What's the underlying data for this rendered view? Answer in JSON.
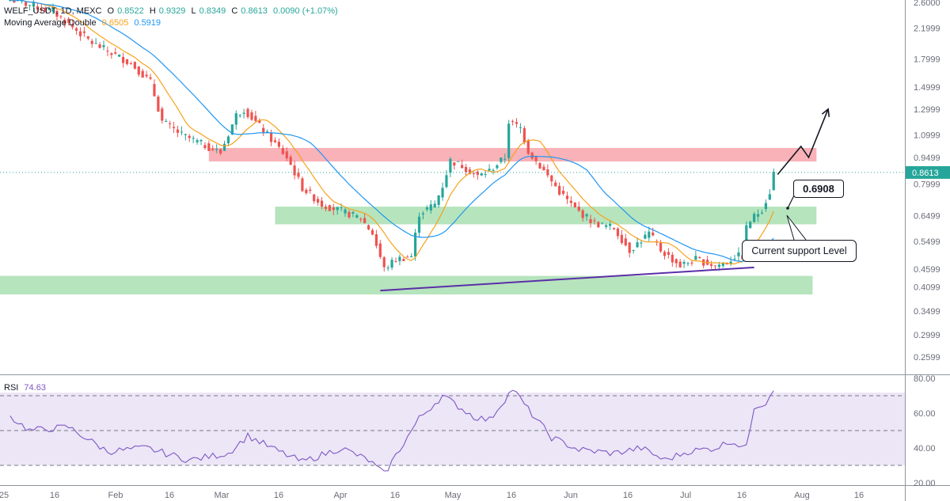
{
  "header": {
    "symbol": "WELF_USDT, 1D, MEXC",
    "ohlc": {
      "o_label": "O",
      "o": "0.8522",
      "h_label": "H",
      "h": "0.9329",
      "l_label": "L",
      "l": "0.8349",
      "c_label": "C",
      "c": "0.8613",
      "change": "0.0090 (+1.07%)"
    },
    "ma_label": "Moving Average Double",
    "ma_fast": "0.6505",
    "ma_slow": "0.5919"
  },
  "rsi_panel": {
    "label": "RSI",
    "value": "74.63"
  },
  "annotations": {
    "price_callout": "0.6908",
    "support_callout": "Current support Level"
  },
  "colors": {
    "up": "#26a69a",
    "down": "#ef5350",
    "ma_fast": "#f7a21b",
    "ma_slow": "#2196f3",
    "rsi": "#7e57c2",
    "resistance_zone": "#f7a5ab",
    "support_zone": "#a9dfb2",
    "trendline": "#5b2fa8"
  },
  "chart_data": [
    {
      "type": "candlestick",
      "title": "WELF_USDT, 1D, MEXC",
      "scale": "log",
      "ylim": [
        0.23,
        2.7
      ],
      "x_ticks": [
        "25",
        "16",
        "Feb",
        "16",
        "Mar",
        "16",
        "Apr",
        "16",
        "May",
        "16",
        "Jun",
        "16",
        "Jul",
        "16",
        "Aug",
        "16"
      ],
      "y_ticks": [
        "2.6000",
        "2.1999",
        "1.7999",
        "1.4999",
        "1.2999",
        "1.0999",
        "0.9499",
        "0.7999",
        "0.6499",
        "0.5499",
        "0.4599",
        "0.4099",
        "0.3499",
        "0.2999",
        "0.2599"
      ],
      "last_price": "0.8613",
      "anchors": [
        {
          "date": "2025-01-01",
          "close": 2.65
        },
        {
          "date": "2025-01-12",
          "close": 2.45
        },
        {
          "date": "2025-01-22",
          "close": 2.0
        },
        {
          "date": "2025-02-01",
          "close": 1.75
        },
        {
          "date": "2025-02-06",
          "close": 1.55
        },
        {
          "date": "2025-02-09",
          "close": 1.2
        },
        {
          "date": "2025-02-14",
          "close": 1.1
        },
        {
          "date": "2025-02-24",
          "close": 0.98
        },
        {
          "date": "2025-02-28",
          "close": 1.25
        },
        {
          "date": "2025-03-02",
          "close": 1.3
        },
        {
          "date": "2025-03-08",
          "close": 1.1
        },
        {
          "date": "2025-03-13",
          "close": 0.95
        },
        {
          "date": "2025-03-17",
          "close": 0.78
        },
        {
          "date": "2025-03-22",
          "close": 0.7
        },
        {
          "date": "2025-03-27",
          "close": 0.67
        },
        {
          "date": "2025-04-01",
          "close": 0.64
        },
        {
          "date": "2025-04-04",
          "close": 0.58
        },
        {
          "date": "2025-04-07",
          "close": 0.46
        },
        {
          "date": "2025-04-10",
          "close": 0.49
        },
        {
          "date": "2025-04-14",
          "close": 0.5
        },
        {
          "date": "2025-04-16",
          "close": 0.66
        },
        {
          "date": "2025-04-20",
          "close": 0.7
        },
        {
          "date": "2025-04-22",
          "close": 0.79
        },
        {
          "date": "2025-04-24",
          "close": 0.93
        },
        {
          "date": "2025-04-27",
          "close": 0.9
        },
        {
          "date": "2025-05-01",
          "close": 0.84
        },
        {
          "date": "2025-05-04",
          "close": 0.87
        },
        {
          "date": "2025-05-08",
          "close": 0.95
        },
        {
          "date": "2025-05-09",
          "close": 1.2
        },
        {
          "date": "2025-05-12",
          "close": 1.15
        },
        {
          "date": "2025-05-14",
          "close": 0.99
        },
        {
          "date": "2025-05-18",
          "close": 0.87
        },
        {
          "date": "2025-05-22",
          "close": 0.76
        },
        {
          "date": "2025-05-26",
          "close": 0.68
        },
        {
          "date": "2025-05-31",
          "close": 0.62
        },
        {
          "date": "2025-06-05",
          "close": 0.6
        },
        {
          "date": "2025-06-09",
          "close": 0.52
        },
        {
          "date": "2025-06-14",
          "close": 0.58
        },
        {
          "date": "2025-06-17",
          "close": 0.52
        },
        {
          "date": "2025-06-22",
          "close": 0.47
        },
        {
          "date": "2025-06-26",
          "close": 0.49
        },
        {
          "date": "2025-07-01",
          "close": 0.47
        },
        {
          "date": "2025-07-04",
          "close": 0.48
        },
        {
          "date": "2025-07-06",
          "close": 0.5
        },
        {
          "date": "2025-07-08",
          "close": 0.5
        },
        {
          "date": "2025-07-09",
          "close": 0.6
        },
        {
          "date": "2025-07-10",
          "close": 0.63
        },
        {
          "date": "2025-07-13",
          "close": 0.68
        },
        {
          "date": "2025-07-15",
          "close": 0.76
        },
        {
          "date": "2025-07-16",
          "close": 0.86
        }
      ],
      "zones": [
        {
          "name": "resistance",
          "from": "2025-02-21",
          "to": "2025-07-27",
          "low": 0.925,
          "high": 1.01
        },
        {
          "name": "support",
          "from": "2025-03-10",
          "to": "2025-07-27",
          "low": 0.615,
          "high": 0.69
        },
        {
          "name": "support",
          "from": "2024-12-29",
          "to": "2025-07-26",
          "low": 0.39,
          "high": 0.44
        }
      ],
      "trendline": {
        "from": [
          "2025-04-06",
          0.4
        ],
        "to": [
          "2025-07-11",
          0.465
        ]
      },
      "projection": [
        [
          "2025-07-17",
          0.85
        ],
        [
          "2025-07-23",
          1.02
        ],
        [
          "2025-07-25",
          0.95
        ],
        [
          "2025-07-30",
          1.3
        ]
      ]
    },
    {
      "type": "line",
      "title": "RSI",
      "ylim": [
        20,
        80
      ],
      "y_ticks": [
        "80.00",
        "60.00",
        "40.00",
        "20.00"
      ],
      "bands": [
        70,
        50,
        30
      ],
      "anchors": [
        {
          "date": "2025-01-01",
          "value": 58
        },
        {
          "date": "2025-01-06",
          "value": 50
        },
        {
          "date": "2025-01-16",
          "value": 52
        },
        {
          "date": "2025-01-26",
          "value": 38
        },
        {
          "date": "2025-02-05",
          "value": 40
        },
        {
          "date": "2025-02-16",
          "value": 33
        },
        {
          "date": "2025-02-26",
          "value": 37
        },
        {
          "date": "2025-03-03",
          "value": 47
        },
        {
          "date": "2025-03-10",
          "value": 39
        },
        {
          "date": "2025-03-17",
          "value": 32
        },
        {
          "date": "2025-03-27",
          "value": 40
        },
        {
          "date": "2025-04-03",
          "value": 33
        },
        {
          "date": "2025-04-07",
          "value": 25
        },
        {
          "date": "2025-04-16",
          "value": 57
        },
        {
          "date": "2025-04-22",
          "value": 70
        },
        {
          "date": "2025-04-30",
          "value": 58
        },
        {
          "date": "2025-05-04",
          "value": 56
        },
        {
          "date": "2025-05-10",
          "value": 74
        },
        {
          "date": "2025-05-14",
          "value": 62
        },
        {
          "date": "2025-05-20",
          "value": 46
        },
        {
          "date": "2025-05-27",
          "value": 39
        },
        {
          "date": "2025-06-05",
          "value": 37
        },
        {
          "date": "2025-06-12",
          "value": 40
        },
        {
          "date": "2025-06-18",
          "value": 33
        },
        {
          "date": "2025-06-24",
          "value": 38
        },
        {
          "date": "2025-07-01",
          "value": 40
        },
        {
          "date": "2025-07-05",
          "value": 44
        },
        {
          "date": "2025-07-09",
          "value": 40
        },
        {
          "date": "2025-07-11",
          "value": 64
        },
        {
          "date": "2025-07-14",
          "value": 66
        },
        {
          "date": "2025-07-16",
          "value": 74.6
        }
      ]
    }
  ]
}
